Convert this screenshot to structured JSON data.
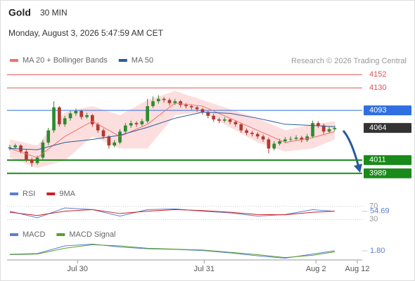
{
  "header": {
    "symbol": "Gold",
    "interval": "30 MIN",
    "timestamp": "Monday, August 3, 2026 5:47:59 AM CET"
  },
  "chart_data": [
    {
      "type": "candlestick",
      "source": "Research © 2026 Trading Central",
      "up_color": "#2e8b2e",
      "down_color": "#b03a2e",
      "xlim": [
        -0.5,
        64
      ],
      "xticks": [
        {
          "value": 12.3,
          "label": "Jul 30"
        },
        {
          "value": 35.3,
          "label": "Jul 31"
        },
        {
          "value": 55.6,
          "label": "Aug 2"
        },
        {
          "value": 63.1,
          "label": "Aug 12"
        }
      ],
      "ylim": [
        3976,
        4165
      ],
      "levels": [
        {
          "value": 4152,
          "color": "#e05050",
          "line": true
        },
        {
          "value": 4130,
          "color": "#e05050",
          "line": true
        },
        {
          "value": 4093,
          "color": "#2f6fe0",
          "line": true
        },
        {
          "value": 4064,
          "color": "#333333",
          "line": false
        },
        {
          "value": 4011,
          "color": "#1a8a1a",
          "line": true
        },
        {
          "value": 3989,
          "color": "#1a8a1a",
          "line": true
        }
      ],
      "candles": [
        [
          4030,
          4036,
          4027,
          4032
        ],
        [
          4032,
          4038,
          4029,
          4035
        ],
        [
          4035,
          4037,
          4022,
          4025
        ],
        [
          4025,
          4028,
          4008,
          4012
        ],
        [
          4012,
          4015,
          4000,
          4006
        ],
        [
          4006,
          4018,
          4003,
          4015
        ],
        [
          4015,
          4044,
          4012,
          4040
        ],
        [
          4040,
          4064,
          4036,
          4060
        ],
        [
          4060,
          4108,
          4056,
          4098
        ],
        [
          4098,
          4100,
          4066,
          4070
        ],
        [
          4070,
          4084,
          4066,
          4080
        ],
        [
          4080,
          4092,
          4076,
          4088
        ],
        [
          4088,
          4096,
          4084,
          4092
        ],
        [
          4092,
          4094,
          4078,
          4082
        ],
        [
          4082,
          4089,
          4079,
          4085
        ],
        [
          4085,
          4087,
          4066,
          4070
        ],
        [
          4070,
          4073,
          4056,
          4060
        ],
        [
          4060,
          4063,
          4046,
          4050
        ],
        [
          4050,
          4052,
          4030,
          4035
        ],
        [
          4035,
          4044,
          4032,
          4040
        ],
        [
          4040,
          4062,
          4037,
          4058
        ],
        [
          4058,
          4072,
          4055,
          4068
        ],
        [
          4068,
          4076,
          4064,
          4072
        ],
        [
          4072,
          4075,
          4066,
          4070
        ],
        [
          4070,
          4079,
          4067,
          4075
        ],
        [
          4075,
          4112,
          4072,
          4100
        ],
        [
          4100,
          4116,
          4097,
          4108
        ],
        [
          4108,
          4118,
          4104,
          4112
        ],
        [
          4112,
          4115,
          4106,
          4110
        ],
        [
          4110,
          4113,
          4101,
          4105
        ],
        [
          4105,
          4112,
          4102,
          4108
        ],
        [
          4108,
          4110,
          4098,
          4102
        ],
        [
          4102,
          4105,
          4096,
          4100
        ],
        [
          4100,
          4103,
          4094,
          4098
        ],
        [
          4098,
          4100,
          4091,
          4095
        ],
        [
          4095,
          4097,
          4086,
          4090
        ],
        [
          4090,
          4092,
          4080,
          4084
        ],
        [
          4084,
          4087,
          4074,
          4078
        ],
        [
          4078,
          4081,
          4072,
          4076
        ],
        [
          4076,
          4082,
          4073,
          4078
        ],
        [
          4078,
          4080,
          4070,
          4074
        ],
        [
          4074,
          4077,
          4066,
          4070
        ],
        [
          4070,
          4072,
          4056,
          4060
        ],
        [
          4060,
          4063,
          4052,
          4056
        ],
        [
          4056,
          4059,
          4050,
          4054
        ],
        [
          4054,
          4057,
          4046,
          4050
        ],
        [
          4050,
          4053,
          4041,
          4045
        ],
        [
          4045,
          4048,
          4022,
          4030
        ],
        [
          4030,
          4042,
          4027,
          4038
        ],
        [
          4038,
          4046,
          4035,
          4042
        ],
        [
          4042,
          4049,
          4039,
          4045
        ],
        [
          4045,
          4050,
          4042,
          4046
        ],
        [
          4046,
          4052,
          4043,
          4048
        ],
        [
          4048,
          4051,
          4040,
          4044
        ],
        [
          4044,
          4054,
          4041,
          4050
        ],
        [
          4050,
          4076,
          4047,
          4072
        ],
        [
          4072,
          4075,
          4064,
          4068
        ],
        [
          4068,
          4071,
          4054,
          4058
        ],
        [
          4058,
          4066,
          4055,
          4062
        ],
        [
          4062,
          4068,
          4059,
          4064
        ]
      ],
      "x": [
        0,
        5,
        10,
        15,
        20,
        25,
        30,
        35,
        40,
        45,
        50,
        55,
        59
      ],
      "series": [
        {
          "name": "MA 20 + Bollinger Bands",
          "color": "#f07070",
          "band_color": "#fddede",
          "values": [
            4030,
            4015,
            4050,
            4075,
            4050,
            4070,
            4105,
            4100,
            4080,
            4060,
            4040,
            4048,
            4058
          ],
          "upper": [
            4045,
            4035,
            4090,
            4100,
            4085,
            4110,
            4125,
            4110,
            4095,
            4080,
            4060,
            4070,
            4075
          ],
          "lower": [
            4015,
            3998,
            4010,
            4050,
            4030,
            4030,
            4085,
            4090,
            4065,
            4040,
            4025,
            4030,
            4045
          ]
        },
        {
          "name": "MA 50",
          "color": "#2a5a9a",
          "values": [
            4030,
            4028,
            4040,
            4045,
            4052,
            4065,
            4080,
            4090,
            4088,
            4080,
            4070,
            4068,
            4066
          ]
        }
      ]
    },
    {
      "type": "line",
      "ylim": [
        20,
        80
      ],
      "yticks": [
        30,
        70
      ],
      "x": [
        0,
        5,
        10,
        15,
        20,
        25,
        30,
        35,
        40,
        45,
        50,
        55,
        59
      ],
      "series": [
        {
          "name": "RSI",
          "color": "#5b7fd6",
          "values": [
            55,
            35,
            65,
            60,
            40,
            60,
            62,
            55,
            50,
            40,
            45,
            60,
            54.69
          ]
        },
        {
          "name": "9MA",
          "color": "#d02020",
          "values": [
            52,
            42,
            55,
            60,
            48,
            55,
            60,
            57,
            52,
            45,
            44,
            52,
            55
          ]
        }
      ]
    },
    {
      "type": "line",
      "ylim": [
        -6,
        12
      ],
      "x": [
        0,
        5,
        10,
        15,
        20,
        25,
        30,
        35,
        40,
        45,
        50,
        55,
        59
      ],
      "series": [
        {
          "name": "MACD",
          "color": "#5b7fd6",
          "values": [
            -1.2,
            -0.5,
            6,
            7.5,
            5,
            3.5,
            3,
            2,
            0,
            -2.5,
            -4.5,
            -1,
            1.8
          ],
          "value_labels": [
            null,
            null,
            null,
            null,
            null,
            null,
            null,
            null,
            null,
            null,
            null,
            null,
            "1.80"
          ]
        },
        {
          "name": "MACD Signal",
          "color": "#5aa02a",
          "values": [
            -1.5,
            -1,
            4,
            7,
            6,
            4,
            3.2,
            2.5,
            0.5,
            -1.5,
            -4,
            -2,
            1.0
          ]
        }
      ]
    }
  ]
}
